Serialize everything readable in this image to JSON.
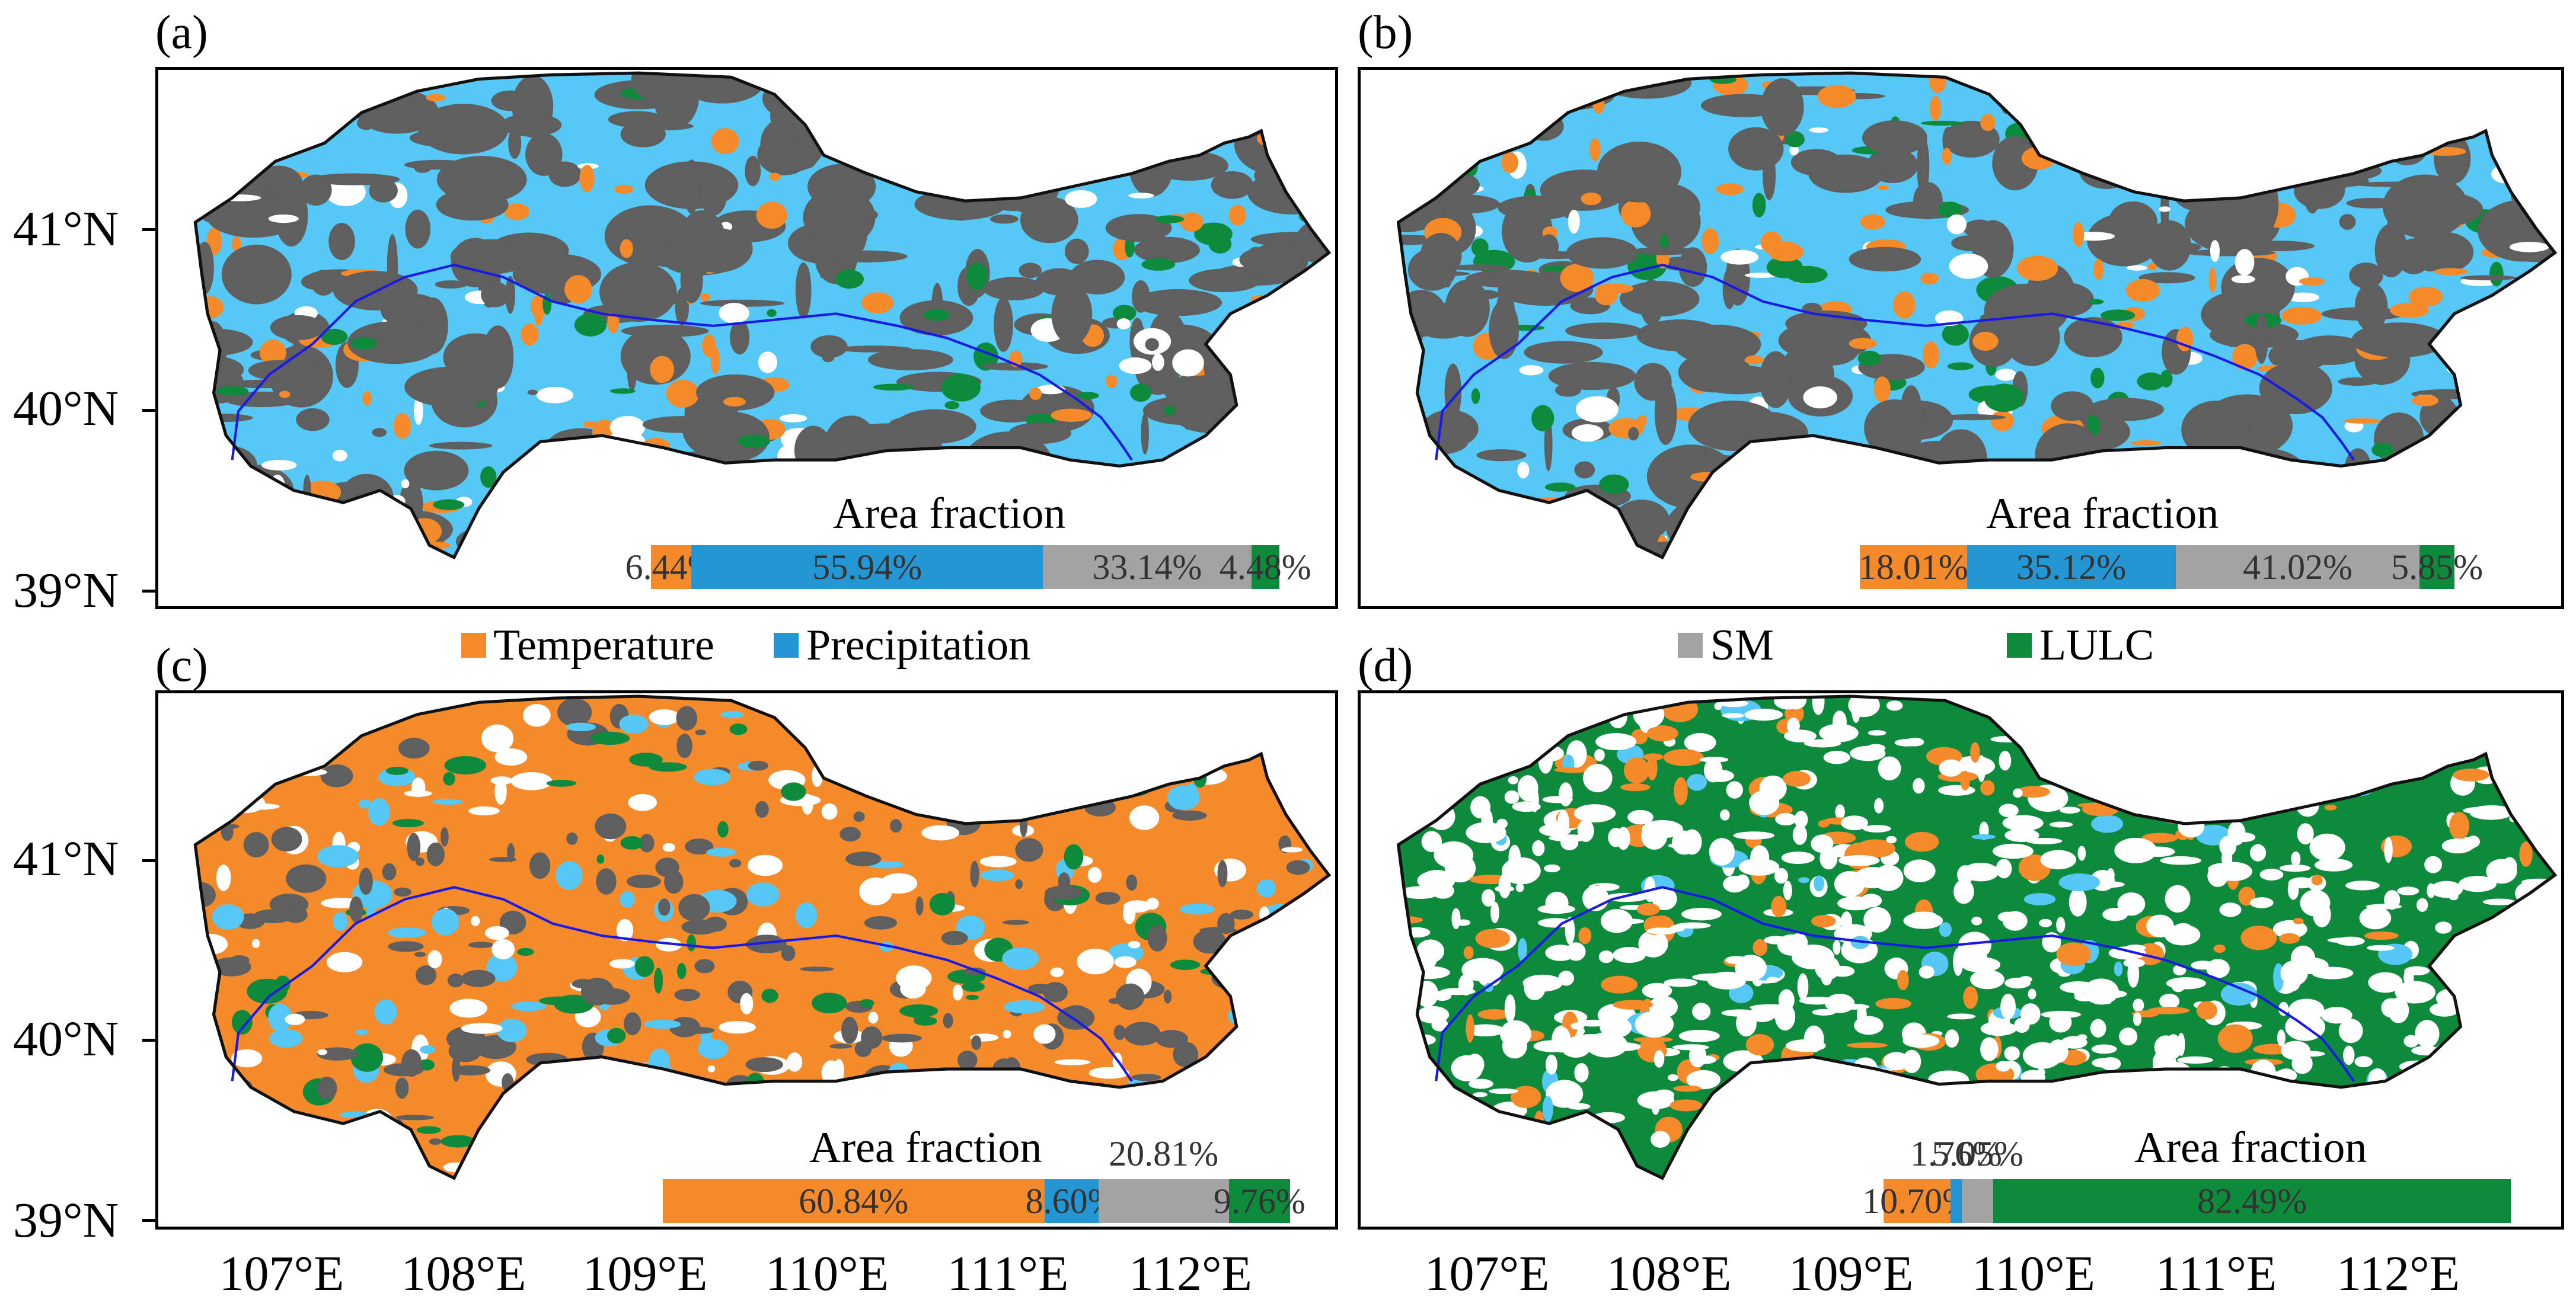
{
  "legend": {
    "items": [
      {
        "label": "Temperature",
        "color": "#f58a2b"
      },
      {
        "label": "Precipitation",
        "color": "#2596d4"
      },
      {
        "label": "SM",
        "color": "#a3a3a3"
      },
      {
        "label": "LULC",
        "color": "#0e8a3c"
      }
    ]
  },
  "axes": {
    "lat_ticks": [
      "41°N",
      "40°N",
      "39°N"
    ],
    "lon_ticks": [
      "107°E",
      "108°E",
      "109°E",
      "110°E",
      "111°E",
      "112°E"
    ]
  },
  "map_colors": {
    "boundary": "#111111",
    "river": "#1a1ae6",
    "dark_gray": "#5f5f5f",
    "light_blue": "#55c8f5",
    "orange": "#f58a2b",
    "green": "#0e8a3c"
  },
  "panels": [
    {
      "label": "(a)",
      "dominant": "light_blue",
      "area_fraction_title": "Area fraction",
      "fractions": [
        {
          "factor": "Temperature",
          "text": "6.44%",
          "value": 6.44
        },
        {
          "factor": "Precipitation",
          "text": "55.94%",
          "value": 55.94
        },
        {
          "factor": "SM",
          "text": "33.14%",
          "value": 33.14
        },
        {
          "factor": "LULC",
          "text": "4.48%",
          "value": 4.48
        }
      ]
    },
    {
      "label": "(b)",
      "dominant": "light_blue",
      "area_fraction_title": "Area fraction",
      "fractions": [
        {
          "factor": "Temperature",
          "text": "18.01%",
          "value": 18.01
        },
        {
          "factor": "Precipitation",
          "text": "35.12%",
          "value": 35.12
        },
        {
          "factor": "SM",
          "text": "41.02%",
          "value": 41.02
        },
        {
          "factor": "LULC",
          "text": "5.85%",
          "value": 5.85
        }
      ]
    },
    {
      "label": "(c)",
      "dominant": "orange",
      "area_fraction_title": "Area fraction",
      "fractions": [
        {
          "factor": "Temperature",
          "text": "60.84%",
          "value": 60.84
        },
        {
          "factor": "Precipitation",
          "text": "8.60%",
          "value": 8.6
        },
        {
          "factor": "SM",
          "text": "20.81%",
          "value": 20.81
        },
        {
          "factor": "LULC",
          "text": "9.76%",
          "value": 9.76
        }
      ]
    },
    {
      "label": "(d)",
      "dominant": "green",
      "area_fraction_title": "Area fraction",
      "fractions": [
        {
          "factor": "Temperature",
          "text": "10.70%",
          "value": 10.7
        },
        {
          "factor": "Precipitation",
          "text": "1.76%",
          "value": 1.76
        },
        {
          "factor": "SM",
          "text": "5.05%",
          "value": 5.05
        },
        {
          "factor": "LULC",
          "text": "82.49%",
          "value": 82.49
        }
      ]
    }
  ]
}
